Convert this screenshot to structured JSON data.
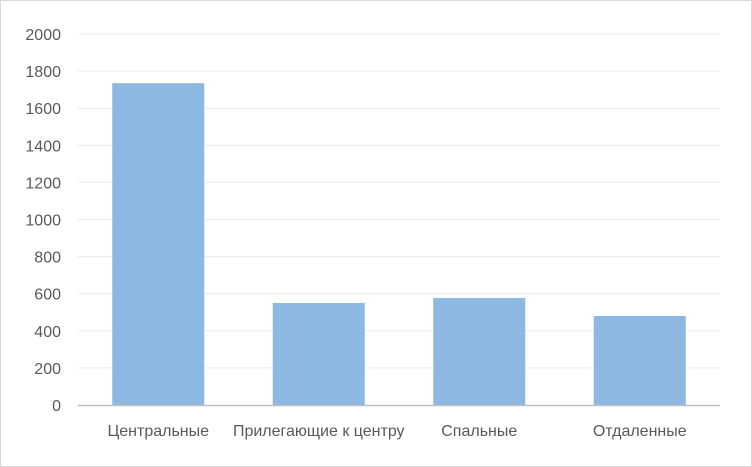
{
  "chart_data": {
    "type": "bar",
    "title": "",
    "xlabel": "",
    "ylabel": "",
    "categories": [
      "Центральные",
      "Прилегающие  к центру",
      "Спальные",
      "Отдаленные"
    ],
    "values": [
      1735,
      550,
      577,
      480
    ],
    "ylim": [
      0,
      2000
    ],
    "yticks": [
      "0",
      "200",
      "400",
      "600",
      "800",
      "1000",
      "1200",
      "1400",
      "1600",
      "1800",
      "2000"
    ],
    "grid": true,
    "legend": "none",
    "bar_color": "#8db8e2",
    "grid_color": "#ececec",
    "axis_color": "#bfbfbf"
  }
}
